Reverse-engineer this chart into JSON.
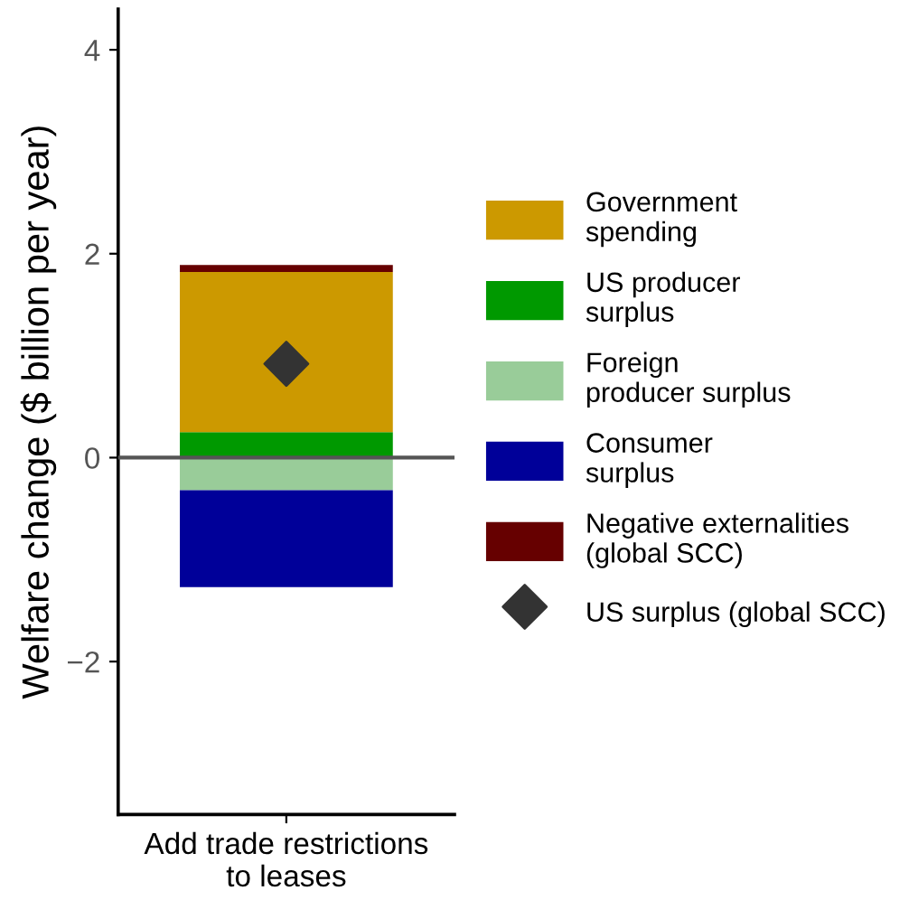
{
  "chart_data": {
    "type": "bar",
    "stacked": true,
    "ylabel": "Welfare change ($ billion per year)",
    "categories": [
      "Add trade restrictions\nto leases"
    ],
    "series": [
      {
        "name": "Government\nspending",
        "color": "#cc9900",
        "values": [
          1.57
        ]
      },
      {
        "name": "US producer\nsurplus",
        "color": "#009900",
        "values": [
          0.25
        ]
      },
      {
        "name": "Foreign\nproducer surplus",
        "color": "#99cc99",
        "values": [
          -0.32
        ]
      },
      {
        "name": "Consumer\nsurplus",
        "color": "#000099",
        "values": [
          -0.95
        ]
      },
      {
        "name": "Negative externalities\n(global SCC)",
        "color": "#660000",
        "values": [
          0.07
        ]
      },
      {
        "name": "US surplus (global SCC)",
        "type": "scatter",
        "marker": "diamond",
        "color": "#333333",
        "x": [
          "Add trade restrictions\nto leases"
        ],
        "values": [
          0.92
        ]
      }
    ],
    "ylim": [
      -3.5,
      4.4
    ],
    "yticks": [
      {
        "value": -2,
        "label": "−2"
      },
      0,
      2,
      4
    ],
    "ref_lines": [
      {
        "axis": "y",
        "value": 0,
        "color": "#555555"
      }
    ],
    "grid": false,
    "legend": "right"
  }
}
